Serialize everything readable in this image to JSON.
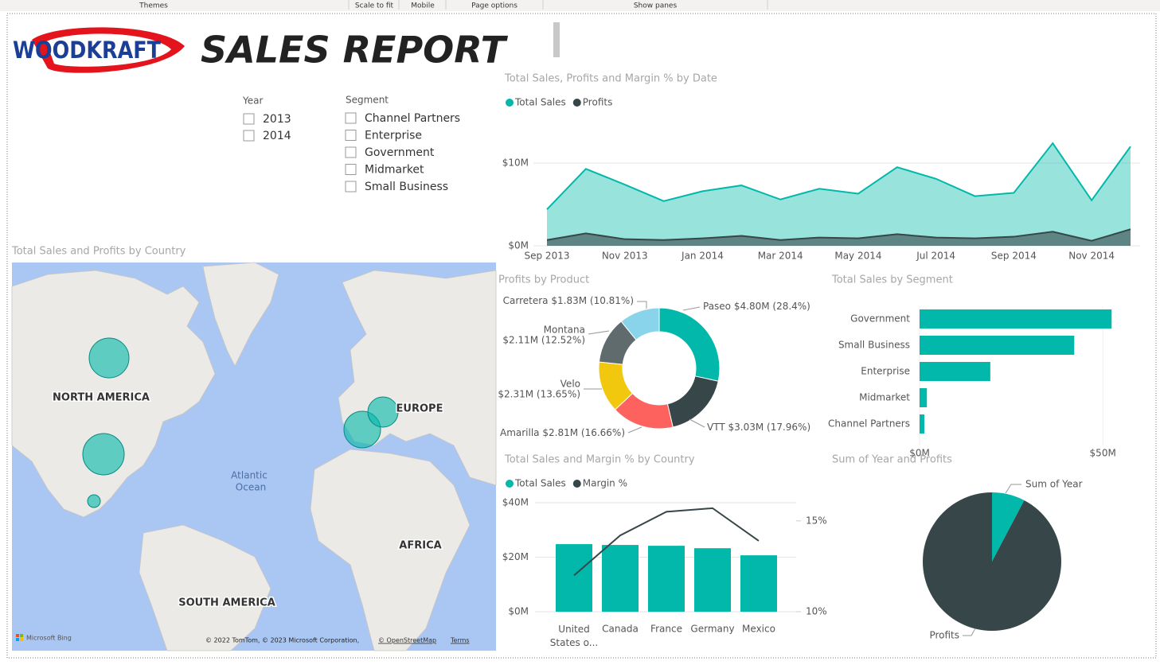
{
  "toolbar": {
    "items": [
      "Themes",
      "Scale to fit",
      "Mobile",
      "Page options",
      "Show panes"
    ]
  },
  "header": {
    "logo": "WOODKRAFT",
    "title": "SALES REPORT"
  },
  "slicers": [
    {
      "title": "Year",
      "options": [
        "2013",
        "2014"
      ]
    },
    {
      "title": "Segment",
      "options": [
        "Channel Partners",
        "Enterprise",
        "Government",
        "Midmarket",
        "Small Business"
      ]
    }
  ],
  "map": {
    "title": "Total Sales and Profits by Country",
    "labels": [
      "NORTH AMERICA",
      "EUROPE",
      "AFRICA",
      "SOUTH AMERICA"
    ],
    "ocean": [
      "Atlantic",
      "Ocean"
    ],
    "brand": "Microsoft Bing",
    "attribution": "© 2022 TomTom, © 2023 Microsoft Corporation,",
    "osm": "© OpenStreetMap",
    "terms": "Terms"
  },
  "chart_data": [
    {
      "type": "area",
      "title": "Total Sales, Profits and Margin % by Date",
      "categories": [
        "Sep 2013",
        null,
        "Nov 2013",
        null,
        "Jan 2014",
        null,
        "Mar 2014",
        null,
        "May 2014",
        null,
        "Jul 2014",
        null,
        "Sep 2014",
        null,
        "Nov 2014",
        null
      ],
      "series": [
        {
          "name": "Total Sales",
          "color": "#01b8aa",
          "values": [
            4.4,
            9.3,
            7.4,
            5.4,
            6.6,
            7.3,
            5.6,
            6.9,
            6.3,
            9.5,
            8.1,
            6.0,
            6.4,
            12.4,
            5.5,
            12.0
          ]
        },
        {
          "name": "Profits",
          "color": "#374649",
          "values": [
            0.7,
            1.5,
            0.8,
            0.7,
            0.9,
            1.2,
            0.7,
            1.0,
            0.9,
            1.4,
            1.0,
            0.9,
            1.1,
            1.7,
            0.6,
            2.0
          ]
        }
      ],
      "ylim": [
        0,
        12.5
      ],
      "yticks": [
        {
          "value": 0,
          "label": "$0M"
        },
        {
          "value": 10,
          "label": "$10M"
        }
      ],
      "grid": true,
      "legend": "top-left"
    },
    {
      "type": "donut",
      "title": "Profits by Product",
      "categories": [
        "Paseo",
        "VTT",
        "Amarilla",
        "Velo",
        "Montana",
        "Carretera"
      ],
      "values": [
        4.8,
        3.03,
        2.81,
        2.31,
        2.11,
        1.83
      ],
      "value_labels": [
        "$4.80M (28.4%)",
        "$3.03M (17.96%)",
        "$2.81M (16.66%)",
        "$2.31M (13.65%)",
        "$2.11M (12.52%)",
        "$1.83M (10.81%)"
      ],
      "colors": [
        "#01b8aa",
        "#374649",
        "#fd625e",
        "#f2c80f",
        "#5f6b6d",
        "#8ad4eb"
      ]
    },
    {
      "type": "hbar",
      "title": "Total Sales by Segment",
      "categories": [
        "Government",
        "Small Business",
        "Enterprise",
        "Midmarket",
        "Channel Partners"
      ],
      "values": [
        52.4,
        42.2,
        19.3,
        2.0,
        1.3
      ],
      "color": "#01b8aa",
      "xlim": [
        0,
        53
      ],
      "xticks": [
        {
          "value": 0,
          "label": "$0M"
        },
        {
          "value": 50,
          "label": "$50M"
        }
      ]
    },
    {
      "type": "combo",
      "title": "Total Sales and Margin % by Country",
      "categories": [
        "United States o...",
        "Canada",
        "France",
        "Germany",
        "Mexico"
      ],
      "series": [
        {
          "name": "Total Sales",
          "color": "#01b8aa",
          "type": "bar",
          "values": [
            24.8,
            24.5,
            24.2,
            23.3,
            20.7
          ]
        },
        {
          "name": "Margin %",
          "color": "#374649",
          "type": "line",
          "axis": "y2",
          "values": [
            12.0,
            14.2,
            15.5,
            15.7,
            13.9
          ]
        }
      ],
      "ylim": [
        0,
        40
      ],
      "yticks": [
        {
          "value": 0,
          "label": "$0M"
        },
        {
          "value": 20,
          "label": "$20M"
        },
        {
          "value": 40,
          "label": "$40M"
        }
      ],
      "y2lim": [
        10,
        16
      ],
      "y2ticks": [
        {
          "value": 10,
          "label": "10%"
        },
        {
          "value": 15,
          "label": "15%"
        }
      ],
      "grid": true,
      "legend": "top-left"
    },
    {
      "type": "pie",
      "title": "Sum of Year and Profits",
      "categories": [
        "Sum of Year",
        "Profits"
      ],
      "values": [
        7.7,
        92.3
      ],
      "colors": [
        "#01b8aa",
        "#374649"
      ]
    }
  ]
}
